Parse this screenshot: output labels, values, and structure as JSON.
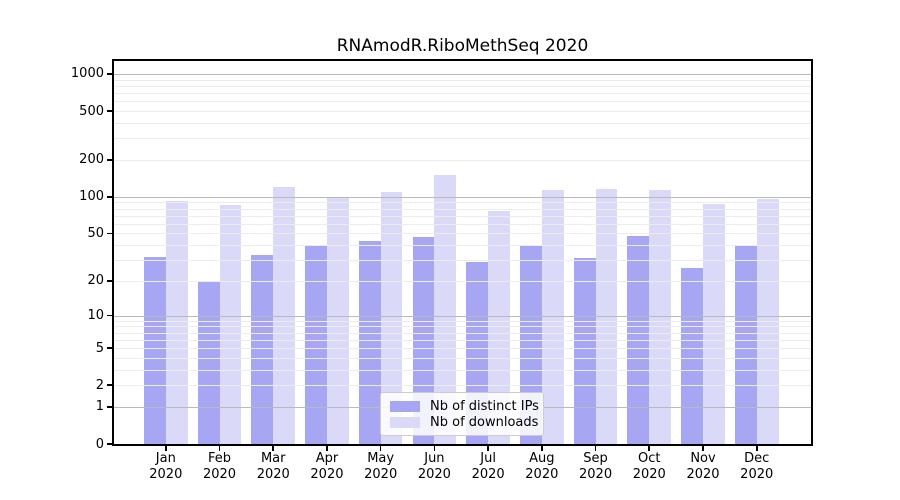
{
  "chart_data": {
    "type": "bar",
    "title": "RNAmodR.RiboMethSeq 2020",
    "categories": [
      "Jan",
      "Feb",
      "Mar",
      "Apr",
      "May",
      "Jun",
      "Jul",
      "Aug",
      "Sep",
      "Oct",
      "Nov",
      "Dec"
    ],
    "x_tick_year": "2020",
    "series": [
      {
        "name": "Nb of distinct IPs",
        "color": "#a6a6f2",
        "values": [
          32,
          20,
          33,
          40,
          43,
          47,
          29,
          39,
          31,
          48,
          26,
          39
        ]
      },
      {
        "name": "Nb of downloads",
        "color": "#dadaf8",
        "values": [
          93,
          85,
          120,
          100,
          110,
          152,
          77,
          114,
          116,
          113,
          88,
          96
        ]
      }
    ],
    "y_ticks": [
      0,
      1,
      2,
      5,
      10,
      20,
      50,
      100,
      200,
      500,
      1000
    ],
    "y_major_gridlines": [
      1,
      10,
      100,
      1000
    ],
    "y_scale": "log10(1+x)",
    "ylim": [
      0,
      1275
    ],
    "xlabel": "",
    "ylabel": "",
    "grid": "horizontal, log minor gridlines drawn over bars",
    "legend_position": "lower-center-inside"
  }
}
